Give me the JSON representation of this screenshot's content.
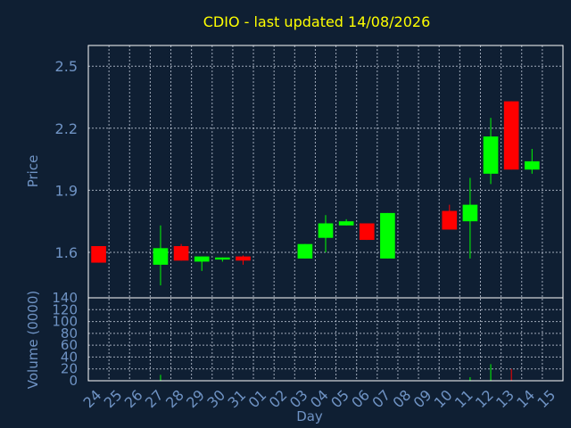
{
  "chart_data": {
    "type": "candlestick",
    "title": "CDIO - last updated 14/08/2026",
    "xlabel": "Day",
    "ylabel": "Price",
    "volume_label": "Volume (0000)",
    "price_ylim": [
      1.38,
      2.6
    ],
    "price_yticks": [
      "1.6",
      "1.9",
      "2.2",
      "2.5"
    ],
    "volume_ylim": [
      0,
      140
    ],
    "volume_yticks": [
      "0",
      "20",
      "40",
      "60",
      "80",
      "100",
      "120",
      "140"
    ],
    "grid": true,
    "categories": [
      "24",
      "25",
      "26",
      "27",
      "28",
      "29",
      "30",
      "31",
      "01",
      "02",
      "03",
      "04",
      "05",
      "06",
      "07",
      "08",
      "09",
      "10",
      "11",
      "12",
      "13",
      "14",
      "15"
    ],
    "candles": [
      {
        "day": "24",
        "open": 1.63,
        "high": 1.63,
        "low": 1.55,
        "close": 1.55,
        "volume": 0
      },
      {
        "day": "27",
        "open": 1.54,
        "high": 1.73,
        "low": 1.44,
        "close": 1.62,
        "volume": 10
      },
      {
        "day": "28",
        "open": 1.63,
        "high": 1.64,
        "low": 1.56,
        "close": 1.56,
        "volume": 0
      },
      {
        "day": "29",
        "open": 1.555,
        "high": 1.58,
        "low": 1.51,
        "close": 1.58,
        "volume": 0
      },
      {
        "day": "30",
        "open": 1.565,
        "high": 1.575,
        "low": 1.555,
        "close": 1.575,
        "volume": 0
      },
      {
        "day": "31",
        "open": 1.58,
        "high": 1.585,
        "low": 1.54,
        "close": 1.56,
        "volume": 0
      },
      {
        "day": "03",
        "open": 1.57,
        "high": 1.64,
        "low": 1.57,
        "close": 1.64,
        "volume": 0
      },
      {
        "day": "04",
        "open": 1.67,
        "high": 1.78,
        "low": 1.6,
        "close": 1.74,
        "volume": 0
      },
      {
        "day": "05",
        "open": 1.73,
        "high": 1.76,
        "low": 1.73,
        "close": 1.75,
        "volume": 0
      },
      {
        "day": "06",
        "open": 1.74,
        "high": 1.74,
        "low": 1.66,
        "close": 1.66,
        "volume": 0
      },
      {
        "day": "07",
        "open": 1.57,
        "high": 1.79,
        "low": 1.57,
        "close": 1.79,
        "volume": 0
      },
      {
        "day": "10",
        "open": 1.8,
        "high": 1.83,
        "low": 1.71,
        "close": 1.71,
        "volume": 0
      },
      {
        "day": "11",
        "open": 1.75,
        "high": 1.96,
        "low": 1.57,
        "close": 1.83,
        "volume": 6
      },
      {
        "day": "12",
        "open": 1.98,
        "high": 2.25,
        "low": 1.93,
        "close": 2.16,
        "volume": 28
      },
      {
        "day": "13",
        "open": 2.33,
        "high": 2.33,
        "low": 2.0,
        "close": 2.0,
        "volume": 20
      },
      {
        "day": "14",
        "open": 2.0,
        "high": 2.1,
        "low": 1.98,
        "close": 2.04,
        "volume": 0
      }
    ],
    "up_color": "#00ff00",
    "down_color": "#ff0000",
    "title_color": "#ffff00",
    "text_color": "#6f93c4",
    "axis_color": "#ffffff",
    "background_color": "#0f1f33"
  }
}
